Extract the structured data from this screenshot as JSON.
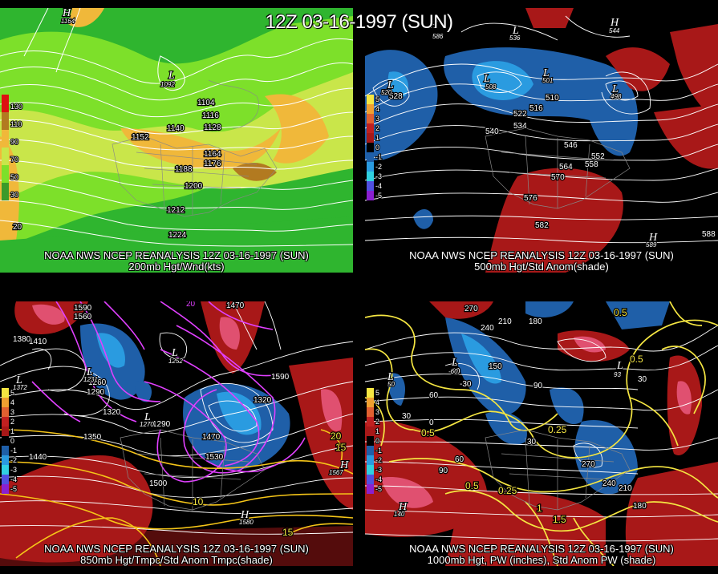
{
  "title": "12Z 03-16-1997 (SUN)",
  "panels": [
    {
      "caption_top": "NOAA NWS NCEP REANALYSIS 12Z 03-16-1997 (SUN)",
      "caption_bottom": "200mb Hgt/Wnd(kts)",
      "colorbar": [
        "130",
        "110",
        "90",
        "70",
        "50",
        "30"
      ],
      "corner_label": "20",
      "contour_labels": [
        "1104",
        "1116",
        "1128",
        "1140",
        "1152",
        "1164",
        "1176",
        "1188",
        "1200",
        "1212",
        "1224"
      ],
      "centers": [
        {
          "letter": "H",
          "value": "1164"
        },
        {
          "letter": "L",
          "value": "1092"
        }
      ]
    },
    {
      "caption_top": "NOAA NWS NCEP REANALYSIS 12Z 03-16-1997 (SUN)",
      "caption_bottom": "500mb Hgt/Std Anom(shade)",
      "colorbar": [
        "5",
        "4",
        "3",
        "2",
        "1",
        "0",
        "-1",
        "-2",
        "-3",
        "-4",
        "-5"
      ],
      "contour_labels": [
        "510",
        "516",
        "522",
        "528",
        "534",
        "540",
        "546",
        "552",
        "558",
        "564",
        "570",
        "576",
        "582",
        "588"
      ],
      "centers": [
        {
          "letter": "L",
          "value": "508"
        },
        {
          "letter": "L",
          "value": "520"
        },
        {
          "letter": "L",
          "value": "498"
        },
        {
          "letter": "L",
          "value": "501"
        },
        {
          "letter": "H",
          "value": "586"
        },
        {
          "letter": "H",
          "value": "589"
        },
        {
          "letter": "H",
          "value": "544"
        },
        {
          "letter": "L",
          "value": "536"
        }
      ]
    },
    {
      "caption_top": "NOAA NWS NCEP REANALYSIS 12Z 03-16-1997 (SUN)",
      "caption_bottom": "850mb Hgt/Tmpc/Std Anom Tmpc(shade)",
      "colorbar": [
        "5",
        "4",
        "3",
        "2",
        "1",
        "0",
        "-1",
        "-2",
        "-3",
        "-4",
        "-5"
      ],
      "contour_labels": [
        "1590",
        "1560",
        "1470",
        "1410",
        "1380",
        "1440",
        "1290",
        "1260",
        "1320",
        "1350",
        "1470",
        "1530",
        "1500",
        "1320",
        "1290",
        "1590"
      ],
      "temp_labels": [
        "10",
        "15",
        "20",
        "15",
        "20"
      ],
      "centers": [
        {
          "letter": "L",
          "value": "1231"
        },
        {
          "letter": "L",
          "value": "1252"
        },
        {
          "letter": "L",
          "value": "1372"
        },
        {
          "letter": "H",
          "value": "1567"
        },
        {
          "letter": "H",
          "value": "1580"
        },
        {
          "letter": "L",
          "value": "1270"
        }
      ]
    },
    {
      "caption_top": "NOAA NWS NCEP REANALYSIS 12Z 03-16-1997 (SUN)",
      "caption_bottom": "1000mb Hgt, PW (inches), Std Anom PW (shade)",
      "colorbar": [
        "5",
        "4",
        "3",
        "2",
        "1",
        "0",
        "-1",
        "-2",
        "-3",
        "-4",
        "-5"
      ],
      "contour_labels": [
        "270",
        "240",
        "210",
        "180",
        "150",
        "90",
        "60",
        "30",
        "0",
        "-60",
        "-30",
        "30",
        "90",
        "240",
        "210",
        "180",
        "60",
        "30",
        "270"
      ],
      "pw_labels": [
        "0.5",
        "0.5",
        "0.25",
        "0.25",
        "0.5",
        "1",
        "1.5",
        "0.5"
      ],
      "centers": [
        {
          "letter": "L",
          "value": "50"
        },
        {
          "letter": "H",
          "value": "140"
        },
        {
          "letter": "L",
          "value": "-60"
        },
        {
          "letter": "L",
          "value": "93"
        }
      ]
    }
  ]
}
